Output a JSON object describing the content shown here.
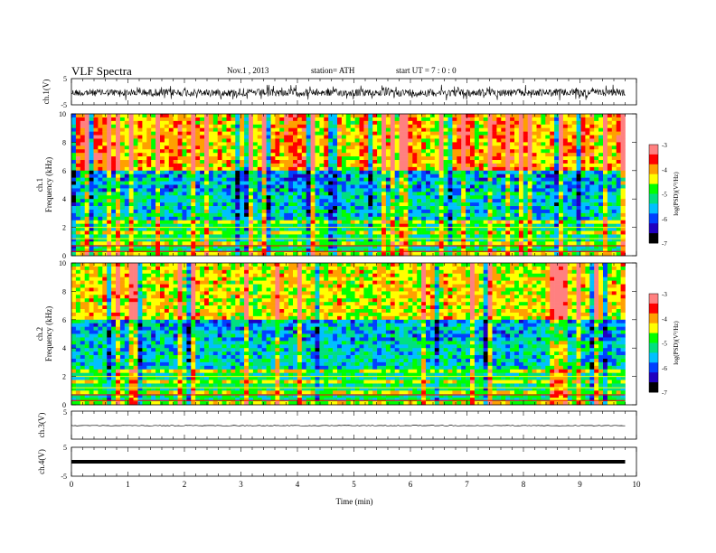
{
  "header": {
    "title": "VLF  Spectra",
    "date": "Nov.1  , 2013",
    "station": "station= ATH",
    "start": "start  UT  =    7  : 0  : 0"
  },
  "colors": {
    "spectrogram_scale": [
      "#000000",
      "#2000c0",
      "#0040ff",
      "#00c0ff",
      "#00e080",
      "#00ff00",
      "#ffff00",
      "#ffa000",
      "#ff0000",
      "#ff8080",
      "#ffffff"
    ],
    "trace": "#000000"
  },
  "chart_data": [
    {
      "type": "line",
      "panel": "ch1_waveform",
      "ylabel": "ch.1(V)",
      "ylim": [
        -5,
        5
      ],
      "yticks": [
        "5",
        "-5"
      ],
      "series": [
        {
          "values_description_free": true,
          "x": [
            0,
            9.8
          ],
          "y": [
            0,
            0
          ]
        }
      ]
    },
    {
      "type": "heatmap",
      "panel": "ch1_spectrogram",
      "ylabel_top": "ch.1",
      "ylabel": "Frequency  (kHz)",
      "ylim": [
        0,
        10
      ],
      "yticks": [
        "0",
        "2",
        "4",
        "6",
        "8",
        "10"
      ],
      "xlim": [
        0,
        9.8
      ],
      "colorbar": {
        "label": "log(PSD)(V²/Hz)",
        "range": [
          -7,
          -3
        ],
        "ticks": [
          "-3",
          "-4",
          "-5",
          "-6",
          "-7"
        ]
      }
    },
    {
      "type": "heatmap",
      "panel": "ch2_spectrogram",
      "ylabel_top": "ch.2",
      "ylabel": "Frequency  (kHz)",
      "ylim": [
        0,
        10
      ],
      "yticks": [
        "0",
        "2",
        "4",
        "6",
        "8",
        "10"
      ],
      "xlim": [
        0,
        9.8
      ],
      "colorbar": {
        "label": "log(PSD)(V²/Hz)",
        "range": [
          -7,
          -3
        ],
        "ticks": [
          "-3",
          "-4",
          "-5",
          "-6",
          "-7"
        ]
      }
    },
    {
      "type": "line",
      "panel": "ch3_waveform",
      "ylabel": "ch.3(V)",
      "ylim": [
        -5,
        5
      ],
      "yticks": [
        "5"
      ],
      "series": [
        {
          "x": [
            0,
            9.8
          ],
          "y": [
            0,
            0
          ]
        }
      ]
    },
    {
      "type": "line",
      "panel": "ch4_waveform",
      "ylabel": "ch.4(V)",
      "ylim": [
        -5,
        5
      ],
      "yticks": [
        "5",
        "-5"
      ],
      "series": [
        {
          "x": [
            0,
            9.8
          ],
          "y": [
            0,
            0
          ]
        }
      ]
    }
  ],
  "xaxis": {
    "label": "Time  (min)",
    "range": [
      0,
      10
    ],
    "ticks": [
      "0",
      "1",
      "2",
      "3",
      "4",
      "5",
      "6",
      "7",
      "8",
      "9",
      "10"
    ]
  }
}
